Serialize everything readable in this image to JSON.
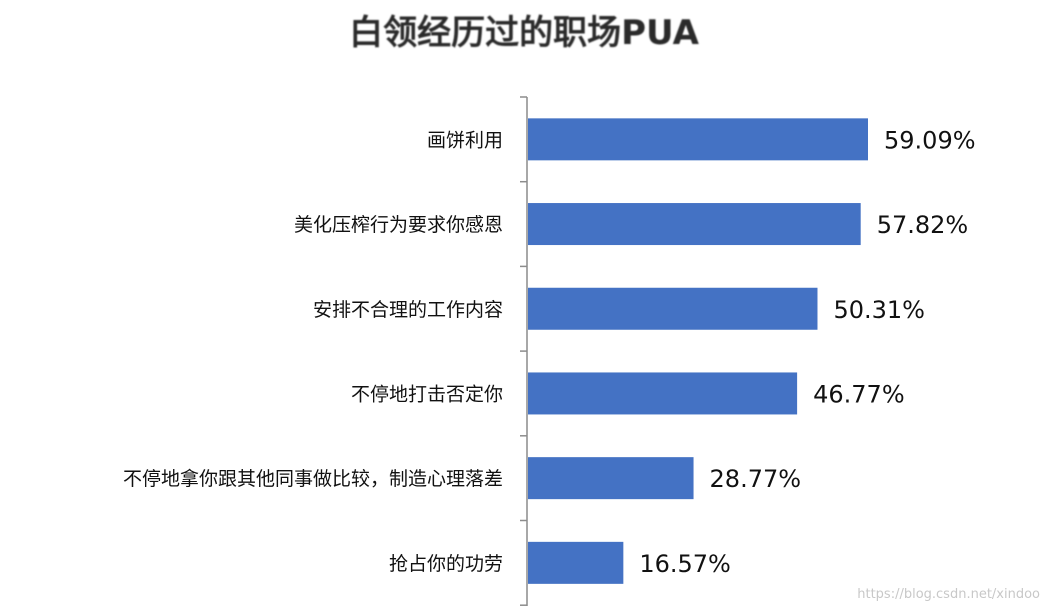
{
  "chart_data": {
    "type": "bar",
    "orientation": "horizontal",
    "title": "白领经历过的职场PUA",
    "categories": [
      "画饼利用",
      "美化压榨行为要求你感恩",
      "安排不合理的工作内容",
      "不停地打击否定你",
      "不停地拿你跟其他同事做比较，制造心理落差",
      "抢占你的功劳"
    ],
    "values": [
      59.09,
      57.82,
      50.31,
      46.77,
      28.77,
      16.57
    ],
    "value_labels": [
      "59.09%",
      "57.82%",
      "50.31%",
      "46.77%",
      "28.77%",
      "16.57%"
    ],
    "unit": "%",
    "xlim": [
      0,
      60
    ],
    "grid": false,
    "legend": "none",
    "bar_color": "#4472c4"
  },
  "watermark": "https://blog.csdn.net/xindoo"
}
